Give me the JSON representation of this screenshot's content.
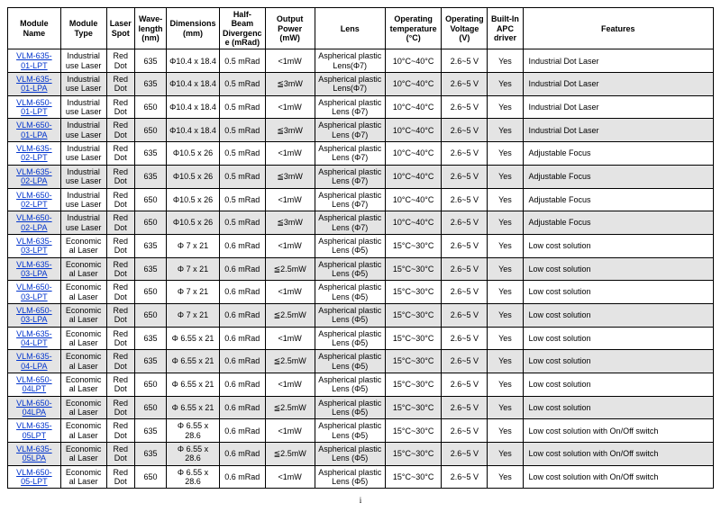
{
  "columns": [
    "Module Name",
    "Module Type",
    "Laser Spot",
    "Wave-length (nm)",
    "Dimensions (mm)",
    "Half-Beam Divergence (mRad)",
    "Output Power (mW)",
    "Lens",
    "Operating temperature (°C)",
    "Operating Voltage (V)",
    "Built-In APC driver",
    "Features"
  ],
  "rows": [
    {
      "shaded": false,
      "name": "VLM-635-01-LPT",
      "type": "Industrial use Laser",
      "spot": "Red Dot",
      "wave": "635",
      "dim": "Φ10.4 x 18.4",
      "div": "0.5 mRad",
      "pow": "<1mW",
      "lens": "Aspherical plastic Lens(Φ7)",
      "temp": "10°C~40°C",
      "volt": "2.6~5 V",
      "apc": "Yes",
      "feat": "Industrial Dot Laser"
    },
    {
      "shaded": true,
      "name": "VLM-635-01-LPA",
      "type": "Industrial use Laser",
      "spot": "Red Dot",
      "wave": "635",
      "dim": "Φ10.4 x 18.4",
      "div": "0.5 mRad",
      "pow": "≦3mW",
      "lens": "Aspherical plastic Lens(Φ7)",
      "temp": "10°C~40°C",
      "volt": "2.6~5 V",
      "apc": "Yes",
      "feat": "Industrial Dot Laser"
    },
    {
      "shaded": false,
      "name": "VLM-650-01-LPT",
      "type": "Industrial use Laser",
      "spot": "Red Dot",
      "wave": "650",
      "dim": "Φ10.4 x 18.4",
      "div": "0.5 mRad",
      "pow": "<1mW",
      "lens": "Aspherical plastic Lens (Φ7)",
      "temp": "10°C~40°C",
      "volt": "2.6~5 V",
      "apc": "Yes",
      "feat": "Industrial Dot Laser"
    },
    {
      "shaded": true,
      "name": "VLM-650-01-LPA",
      "type": "Industrial use Laser",
      "spot": "Red Dot",
      "wave": "650",
      "dim": "Φ10.4 x 18.4",
      "div": "0.5 mRad",
      "pow": "≦3mW",
      "lens": "Aspherical plastic Lens (Φ7)",
      "temp": "10°C~40°C",
      "volt": "2.6~5 V",
      "apc": "Yes",
      "feat": "Industrial Dot Laser"
    },
    {
      "shaded": false,
      "name": "VLM-635-02-LPT",
      "type": "Industrial use Laser",
      "spot": "Red Dot",
      "wave": "635",
      "dim": "Φ10.5 x 26",
      "div": "0.5 mRad",
      "pow": "<1mW",
      "lens": "Aspherical plastic Lens (Φ7)",
      "temp": "10°C~40°C",
      "volt": "2.6~5 V",
      "apc": "Yes",
      "feat": "Adjustable Focus"
    },
    {
      "shaded": true,
      "name": "VLM-635-02-LPA",
      "type": "Industrial use Laser",
      "spot": "Red Dot",
      "wave": "635",
      "dim": "Φ10.5 x 26",
      "div": "0.5 mRad",
      "pow": "≦3mW",
      "lens": "Aspherical plastic Lens (Φ7)",
      "temp": "10°C~40°C",
      "volt": "2.6~5 V",
      "apc": "Yes",
      "feat": "Adjustable Focus"
    },
    {
      "shaded": false,
      "name": "VLM-650-02-LPT",
      "type": "Industrial use Laser",
      "spot": "Red Dot",
      "wave": "650",
      "dim": "Φ10.5 x 26",
      "div": "0.5 mRad",
      "pow": "<1mW",
      "lens": "Aspherical plastic Lens (Φ7)",
      "temp": "10°C~40°C",
      "volt": "2.6~5 V",
      "apc": "Yes",
      "feat": "Adjustable Focus"
    },
    {
      "shaded": true,
      "name": "VLM-650-02-LPA",
      "type": "Industrial use Laser",
      "spot": "Red Dot",
      "wave": "650",
      "dim": "Φ10.5 x 26",
      "div": "0.5 mRad",
      "pow": "≦3mW",
      "lens": "Aspherical plastic Lens (Φ7)",
      "temp": "10°C~40°C",
      "volt": "2.6~5 V",
      "apc": "Yes",
      "feat": "Adjustable Focus"
    },
    {
      "shaded": false,
      "name": "VLM-635-03-LPT",
      "type": "Economical Laser",
      "spot": "Red Dot",
      "wave": "635",
      "dim": "Φ 7 x 21",
      "div": "0.6 mRad",
      "pow": "<1mW",
      "lens": "Aspherical plastic Lens (Φ5)",
      "temp": "15°C~30°C",
      "volt": "2.6~5 V",
      "apc": "Yes",
      "feat": "Low cost solution"
    },
    {
      "shaded": true,
      "name": "VLM-635-03-LPA",
      "type": "Economical Laser",
      "spot": "Red Dot",
      "wave": "635",
      "dim": "Φ 7 x 21",
      "div": "0.6 mRad",
      "pow": "≦2.5mW",
      "lens": "Aspherical plastic Lens (Φ5)",
      "temp": "15°C~30°C",
      "volt": "2.6~5 V",
      "apc": "Yes",
      "feat": "Low cost solution"
    },
    {
      "shaded": false,
      "name": "VLM-650-03-LPT",
      "type": "Economical Laser",
      "spot": "Red Dot",
      "wave": "650",
      "dim": "Φ 7 x 21",
      "div": "0.6 mRad",
      "pow": "<1mW",
      "lens": "Aspherical plastic Lens (Φ5)",
      "temp": "15°C~30°C",
      "volt": "2.6~5 V",
      "apc": "Yes",
      "feat": "Low cost solution"
    },
    {
      "shaded": true,
      "name": "VLM-650-03-LPA",
      "type": "Economical Laser",
      "spot": "Red Dot",
      "wave": "650",
      "dim": "Φ 7 x 21",
      "div": "0.6 mRad",
      "pow": "≦2.5mW",
      "lens": "Aspherical plastic Lens (Φ5)",
      "temp": "15°C~30°C",
      "volt": "2.6~5 V",
      "apc": "Yes",
      "feat": "Low cost solution"
    },
    {
      "shaded": false,
      "name": "VLM-635-04-LPT",
      "type": "Economical Laser",
      "spot": "Red Dot",
      "wave": "635",
      "dim": "Φ 6.55 x 21",
      "div": "0.6 mRad",
      "pow": "<1mW",
      "lens": "Aspherical plastic Lens (Φ5)",
      "temp": "15°C~30°C",
      "volt": "2.6~5 V",
      "apc": "Yes",
      "feat": "Low cost solution"
    },
    {
      "shaded": true,
      "name": "VLM-635-04-LPA",
      "type": "Economical Laser",
      "spot": "Red Dot",
      "wave": "635",
      "dim": "Φ 6.55 x 21",
      "div": "0.6 mRad",
      "pow": "≦2.5mW",
      "lens": "Aspherical plastic Lens (Φ5)",
      "temp": "15°C~30°C",
      "volt": "2.6~5 V",
      "apc": "Yes",
      "feat": "Low cost solution"
    },
    {
      "shaded": false,
      "name": "VLM-650-04LPT",
      "type": "Economical Laser",
      "spot": "Red Dot",
      "wave": "650",
      "dim": "Φ 6.55 x 21",
      "div": "0.6 mRad",
      "pow": "<1mW",
      "lens": "Aspherical plastic Lens (Φ5)",
      "temp": "15°C~30°C",
      "volt": "2.6~5 V",
      "apc": "Yes",
      "feat": "Low cost solution"
    },
    {
      "shaded": true,
      "name": "VLM-650-04LPA",
      "type": "Economical Laser",
      "spot": "Red Dot",
      "wave": "650",
      "dim": "Φ 6.55 x 21",
      "div": "0.6 mRad",
      "pow": "≦2.5mW",
      "lens": "Aspherical plastic Lens (Φ5)",
      "temp": "15°C~30°C",
      "volt": "2.6~5 V",
      "apc": "Yes",
      "feat": "Low cost solution"
    },
    {
      "shaded": false,
      "name": "VLM-635-05LPT",
      "type": "Economical Laser",
      "spot": "Red Dot",
      "wave": "635",
      "dim": "Φ 6.55 x 28.6",
      "div": "0.6 mRad",
      "pow": "<1mW",
      "lens": "Aspherical plastic Lens (Φ5)",
      "temp": "15°C~30°C",
      "volt": "2.6~5 V",
      "apc": "Yes",
      "feat": "Low cost solution with On/Off switch"
    },
    {
      "shaded": true,
      "name": "VLM-635-05LPA",
      "type": "Economical Laser",
      "spot": "Red Dot",
      "wave": "635",
      "dim": "Φ 6.55 x 28.6",
      "div": "0.6 mRad",
      "pow": "≦2.5mW",
      "lens": "Aspherical plastic Lens (Φ5)",
      "temp": "15°C~30°C",
      "volt": "2.6~5 V",
      "apc": "Yes",
      "feat": "Low cost solution with On/Off switch"
    },
    {
      "shaded": false,
      "name": "VLM-650-05-LPT",
      "type": "Economical Laser",
      "spot": "Red Dot",
      "wave": "650",
      "dim": "Φ 6.55 x 28.6",
      "div": "0.6 mRad",
      "pow": "<1mW",
      "lens": "Aspherical plastic Lens (Φ5)",
      "temp": "15°C~30°C",
      "volt": "2.6~5 V",
      "apc": "Yes",
      "feat": "Low cost solution with On/Off switch"
    }
  ],
  "page_number": "i"
}
